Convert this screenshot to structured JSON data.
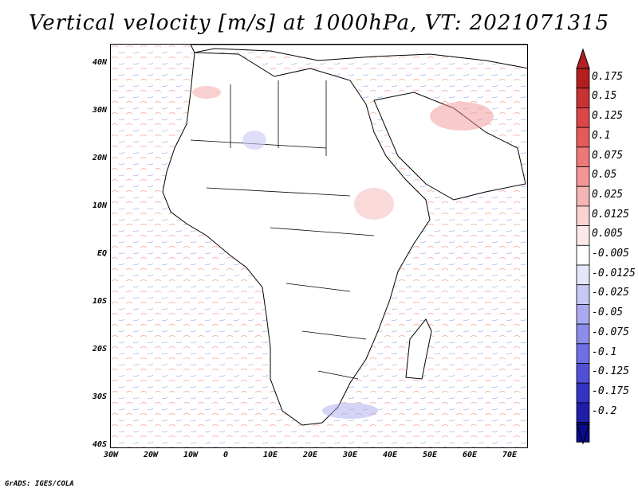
{
  "title": "Vertical velocity [m/s] at 1000hPa, VT: 2021071315",
  "footer": "GrADS: IGES/COLA",
  "lat_ticks": [
    "40N",
    "30N",
    "20N",
    "10N",
    "EQ",
    "10S",
    "20S",
    "30S",
    "40S"
  ],
  "lon_ticks": [
    "30W",
    "20W",
    "10W",
    "0",
    "10E",
    "20E",
    "30E",
    "40E",
    "50E",
    "60E",
    "70E"
  ],
  "colorbar": {
    "levels": [
      "0.175",
      "0.15",
      "0.125",
      "0.1",
      "0.075",
      "0.05",
      "0.025",
      "0.0125",
      "0.005",
      "-0.005",
      "-0.0125",
      "-0.025",
      "-0.05",
      "-0.075",
      "-0.1",
      "-0.125",
      "-0.175",
      "-0.2"
    ],
    "colors": [
      "#b41e1e",
      "#c83232",
      "#dc4646",
      "#e65a5a",
      "#ee7878",
      "#f29696",
      "#f6b4b4",
      "#f9d2d2",
      "#fce8e8",
      "#ffffff",
      "#e6e6fa",
      "#c8c8f5",
      "#aaaaf0",
      "#8c8ceb",
      "#6e6ee6",
      "#5050d7",
      "#3232c3",
      "#1e1eaa",
      "#0a0a8c"
    ]
  },
  "map": {
    "lon_range": [
      -30,
      75
    ],
    "lat_range": [
      -40,
      45
    ],
    "land_color": "#ffffff",
    "border_color": "#000000"
  }
}
